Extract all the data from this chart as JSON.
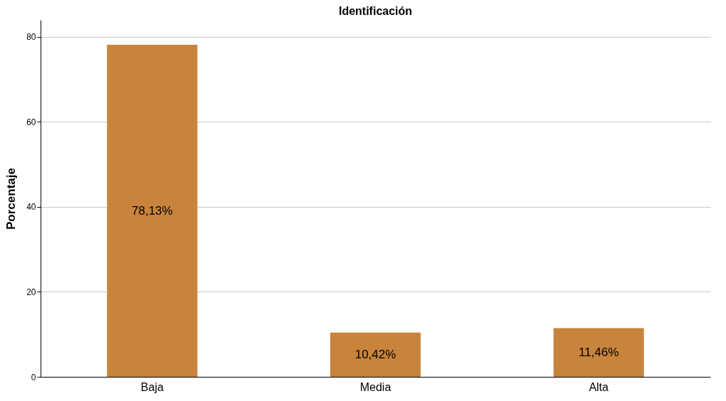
{
  "chart_data": {
    "type": "bar",
    "title": "Identificación",
    "ylabel": "Porcentaje",
    "categories": [
      "Baja",
      "Media",
      "Alta"
    ],
    "values": [
      78.13,
      10.42,
      11.46
    ],
    "value_labels": [
      "78,13%",
      "10,42%",
      "11,46%"
    ],
    "color": "#c8843c",
    "ylim": [
      0,
      84
    ],
    "yticks": [
      0,
      20,
      40,
      60,
      80
    ],
    "grid": "y"
  }
}
